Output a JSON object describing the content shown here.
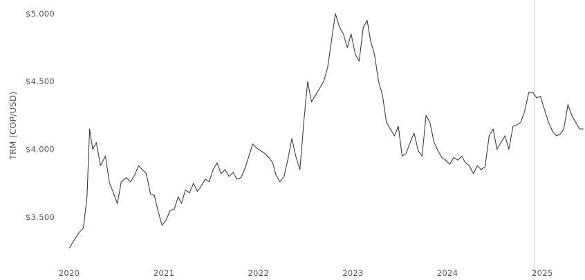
{
  "chart_data": {
    "type": "line",
    "title": "",
    "xlabel": "",
    "ylabel": "TRM (COP/USD)",
    "x_ticks": [
      "2020",
      "2021",
      "2022",
      "2023",
      "2024",
      "2025"
    ],
    "y_ticks": [
      "$3.500",
      "$4.000",
      "$4.500",
      "$5.000"
    ],
    "xlim": [
      "2020-01-01",
      "2025-06-15"
    ],
    "ylim": [
      3230,
      5060
    ],
    "grid": false,
    "legend": "none",
    "line_color": "#3a3a3a",
    "marker_line_color": "#cfcfcf",
    "marker_line_x": "2024-12-01",
    "series": [
      {
        "points": [
          [
            "2020-01-01",
            3270
          ],
          [
            "2020-01-20",
            3330
          ],
          [
            "2020-02-10",
            3390
          ],
          [
            "2020-02-25",
            3420
          ],
          [
            "2020-03-10",
            3650
          ],
          [
            "2020-03-20",
            4150
          ],
          [
            "2020-04-01",
            4000
          ],
          [
            "2020-04-15",
            4050
          ],
          [
            "2020-05-01",
            3880
          ],
          [
            "2020-05-20",
            3950
          ],
          [
            "2020-06-05",
            3750
          ],
          [
            "2020-06-20",
            3680
          ],
          [
            "2020-07-05",
            3600
          ],
          [
            "2020-07-20",
            3760
          ],
          [
            "2020-08-10",
            3790
          ],
          [
            "2020-08-25",
            3760
          ],
          [
            "2020-09-10",
            3810
          ],
          [
            "2020-09-25",
            3880
          ],
          [
            "2020-10-10",
            3850
          ],
          [
            "2020-10-25",
            3820
          ],
          [
            "2020-11-10",
            3670
          ],
          [
            "2020-11-25",
            3660
          ],
          [
            "2020-12-10",
            3540
          ],
          [
            "2020-12-25",
            3440
          ],
          [
            "2021-01-10",
            3480
          ],
          [
            "2021-01-25",
            3550
          ],
          [
            "2021-02-10",
            3560
          ],
          [
            "2021-02-25",
            3650
          ],
          [
            "2021-03-10",
            3600
          ],
          [
            "2021-03-25",
            3700
          ],
          [
            "2021-04-10",
            3680
          ],
          [
            "2021-04-25",
            3750
          ],
          [
            "2021-05-10",
            3690
          ],
          [
            "2021-05-25",
            3730
          ],
          [
            "2021-06-10",
            3780
          ],
          [
            "2021-06-25",
            3760
          ],
          [
            "2021-07-10",
            3850
          ],
          [
            "2021-07-25",
            3900
          ],
          [
            "2021-08-10",
            3820
          ],
          [
            "2021-08-25",
            3850
          ],
          [
            "2021-09-10",
            3800
          ],
          [
            "2021-09-25",
            3830
          ],
          [
            "2021-10-10",
            3780
          ],
          [
            "2021-10-25",
            3790
          ],
          [
            "2021-11-10",
            3860
          ],
          [
            "2021-11-25",
            3950
          ],
          [
            "2021-12-10",
            4040
          ],
          [
            "2021-12-25",
            4010
          ],
          [
            "2022-01-10",
            3990
          ],
          [
            "2022-01-25",
            3970
          ],
          [
            "2022-02-10",
            3940
          ],
          [
            "2022-02-25",
            3900
          ],
          [
            "2022-03-10",
            3810
          ],
          [
            "2022-03-25",
            3760
          ],
          [
            "2022-04-10",
            3800
          ],
          [
            "2022-04-25",
            3930
          ],
          [
            "2022-05-10",
            4080
          ],
          [
            "2022-05-25",
            3950
          ],
          [
            "2022-06-10",
            3850
          ],
          [
            "2022-06-25",
            4200
          ],
          [
            "2022-07-10",
            4500
          ],
          [
            "2022-07-25",
            4350
          ],
          [
            "2022-08-10",
            4400
          ],
          [
            "2022-08-25",
            4450
          ],
          [
            "2022-09-10",
            4500
          ],
          [
            "2022-09-25",
            4600
          ],
          [
            "2022-10-10",
            4800
          ],
          [
            "2022-10-25",
            5000
          ],
          [
            "2022-11-10",
            4900
          ],
          [
            "2022-11-25",
            4850
          ],
          [
            "2022-12-10",
            4750
          ],
          [
            "2022-12-25",
            4850
          ],
          [
            "2023-01-10",
            4700
          ],
          [
            "2023-01-25",
            4650
          ],
          [
            "2023-02-10",
            4900
          ],
          [
            "2023-02-25",
            4950
          ],
          [
            "2023-03-10",
            4800
          ],
          [
            "2023-03-25",
            4700
          ],
          [
            "2023-04-10",
            4500
          ],
          [
            "2023-04-25",
            4400
          ],
          [
            "2023-05-10",
            4200
          ],
          [
            "2023-05-25",
            4150
          ],
          [
            "2023-06-10",
            4100
          ],
          [
            "2023-06-25",
            4170
          ],
          [
            "2023-07-10",
            3950
          ],
          [
            "2023-07-25",
            3970
          ],
          [
            "2023-08-10",
            4050
          ],
          [
            "2023-08-25",
            4120
          ],
          [
            "2023-09-10",
            3990
          ],
          [
            "2023-09-25",
            3950
          ],
          [
            "2023-10-10",
            4250
          ],
          [
            "2023-10-25",
            4200
          ],
          [
            "2023-11-10",
            4050
          ],
          [
            "2023-11-25",
            3990
          ],
          [
            "2023-12-10",
            3940
          ],
          [
            "2023-12-25",
            3920
          ],
          [
            "2024-01-10",
            3890
          ],
          [
            "2024-01-25",
            3940
          ],
          [
            "2024-02-10",
            3920
          ],
          [
            "2024-02-25",
            3950
          ],
          [
            "2024-03-10",
            3900
          ],
          [
            "2024-03-25",
            3880
          ],
          [
            "2024-04-10",
            3820
          ],
          [
            "2024-04-25",
            3880
          ],
          [
            "2024-05-10",
            3850
          ],
          [
            "2024-05-25",
            3870
          ],
          [
            "2024-06-10",
            4100
          ],
          [
            "2024-06-25",
            4150
          ],
          [
            "2024-07-10",
            4000
          ],
          [
            "2024-07-25",
            4050
          ],
          [
            "2024-08-10",
            4100
          ],
          [
            "2024-08-25",
            4000
          ],
          [
            "2024-09-10",
            4170
          ],
          [
            "2024-09-25",
            4180
          ],
          [
            "2024-10-10",
            4200
          ],
          [
            "2024-10-25",
            4280
          ],
          [
            "2024-11-10",
            4420
          ],
          [
            "2024-11-25",
            4420
          ],
          [
            "2024-12-10",
            4380
          ],
          [
            "2024-12-25",
            4390
          ],
          [
            "2025-01-10",
            4290
          ],
          [
            "2025-01-25",
            4200
          ],
          [
            "2025-02-10",
            4130
          ],
          [
            "2025-02-25",
            4100
          ],
          [
            "2025-03-10",
            4110
          ],
          [
            "2025-03-25",
            4150
          ],
          [
            "2025-04-10",
            4330
          ],
          [
            "2025-04-25",
            4250
          ],
          [
            "2025-05-10",
            4200
          ],
          [
            "2025-05-25",
            4150
          ],
          [
            "2025-06-10",
            4150
          ]
        ]
      }
    ]
  }
}
